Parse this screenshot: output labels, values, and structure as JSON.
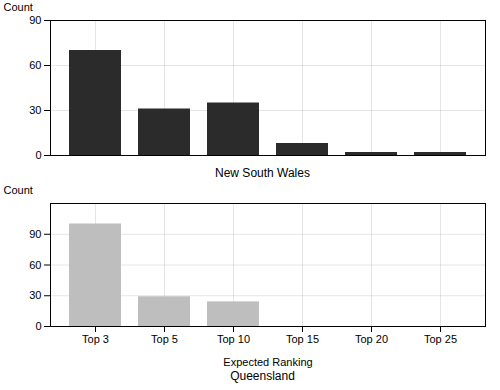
{
  "chart_data": [
    {
      "type": "bar",
      "title": "New South Wales",
      "categories": [
        "Top 3",
        "Top 5",
        "Top 10",
        "Top 15",
        "Top 20",
        "Top 25"
      ],
      "values": [
        70,
        31,
        35,
        8,
        2,
        2
      ],
      "color": "#2b2b2b",
      "ylabel": "Count",
      "ylim": [
        0,
        90
      ],
      "yticks": [
        0,
        30,
        60,
        90
      ],
      "grid": true,
      "tick_labels": "y"
    },
    {
      "type": "bar",
      "title": "Queensland",
      "xlabel": "Expected Ranking",
      "categories": [
        "Top 3",
        "Top 5",
        "Top 10",
        "Top 15",
        "Top 20",
        "Top 25"
      ],
      "values": [
        100,
        29,
        24,
        0,
        0,
        0
      ],
      "color": "#bebebe",
      "ylabel": "Count",
      "ylim": [
        0,
        120
      ],
      "yticks": [
        0,
        30,
        60,
        90
      ],
      "grid": true
    }
  ]
}
